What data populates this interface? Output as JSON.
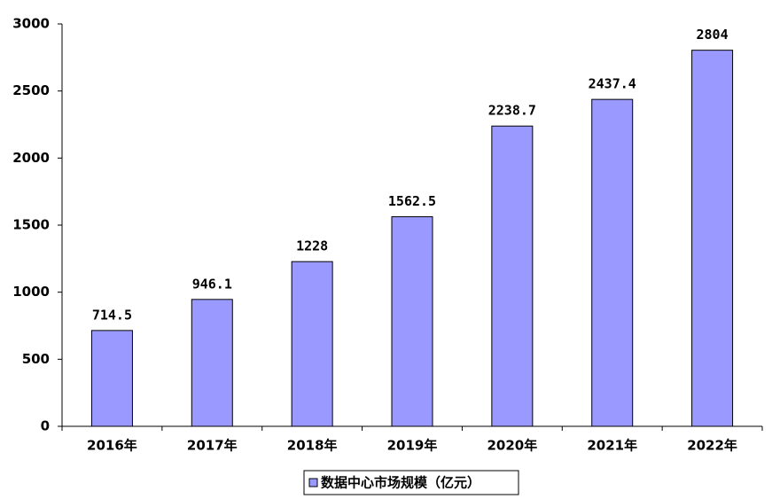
{
  "chart_data": {
    "type": "bar",
    "categories": [
      "2016年",
      "2017年",
      "2018年",
      "2019年",
      "2020年",
      "2021年",
      "2022年"
    ],
    "series": [
      {
        "name": "数据中心市场规模（亿元）",
        "color": "#9999ff",
        "values": [
          714.5,
          946.1,
          1228,
          1562.5,
          2238.7,
          2437.4,
          2804
        ]
      }
    ],
    "ylim": [
      0,
      3000
    ],
    "yticks": [
      0,
      500,
      1000,
      1500,
      2000,
      2500,
      3000
    ],
    "legend": "bottom"
  }
}
